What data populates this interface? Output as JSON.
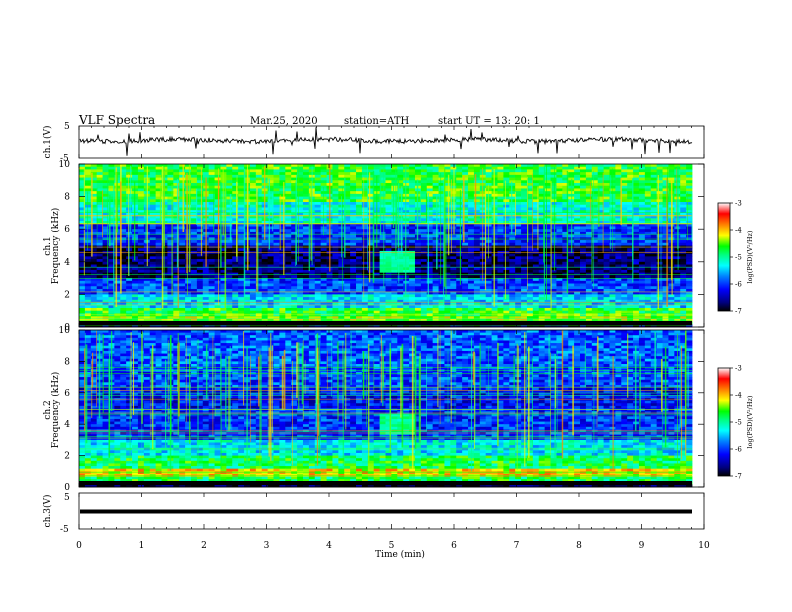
{
  "header": {
    "title": "VLF  Spectra",
    "date": "Mar.25, 2020",
    "station": "station=ATH",
    "start": "start  UT  =    13: 20: 1"
  },
  "chart_data": [
    {
      "type": "line",
      "name": "ch1-waveform",
      "ylabel": "ch.1(V)",
      "ylim": [
        -5,
        5
      ],
      "yticks": [
        "5",
        "-5"
      ],
      "xlim": [
        0,
        10
      ],
      "description_values": {
        "baseline_volts": 0.5,
        "noise_amplitude_volts": 1
      }
    },
    {
      "type": "heatmap",
      "name": "ch1-spectrogram",
      "ylabel_top": "ch.1",
      "ylabel": "Frequency (kHz)",
      "ylim": [
        0,
        10
      ],
      "yticks": [
        "0",
        "2",
        "4",
        "6",
        "8",
        "10"
      ],
      "xlim": [
        0,
        10
      ],
      "colorbar": {
        "label": "log(PSD)(V²/Hz)",
        "range": [
          -7,
          -3
        ],
        "ticks": [
          "-3",
          "-4",
          "-5",
          "-6",
          "-7"
        ]
      },
      "event": {
        "time_min": 5.1,
        "freq_khz": 4.0
      }
    },
    {
      "type": "heatmap",
      "name": "ch2-spectrogram",
      "ylabel_top": "ch.2",
      "ylabel": "Frequency (kHz)",
      "ylim": [
        0,
        10
      ],
      "yticks": [
        "0",
        "2",
        "4",
        "6",
        "8",
        "10"
      ],
      "xlim": [
        0,
        10
      ],
      "colorbar": {
        "label": "log(PSD)(V²/Hz)",
        "range": [
          -7,
          -3
        ],
        "ticks": [
          "-3",
          "-4",
          "-5",
          "-6",
          "-7"
        ]
      },
      "event": {
        "time_min": 5.1,
        "freq_khz": 4.0
      }
    },
    {
      "type": "line",
      "name": "ch3-waveform",
      "ylabel": "ch.3(V)",
      "ylim": [
        -5,
        5
      ],
      "yticks": [
        "5",
        "-5"
      ],
      "xlim": [
        0,
        10
      ],
      "xlabel": "Time  (min)",
      "xticks": [
        "0",
        "1",
        "2",
        "3",
        "4",
        "5",
        "6",
        "7",
        "8",
        "9",
        "10"
      ],
      "description_values": {
        "constant_volts": 0
      }
    }
  ],
  "colors": {
    "psd_scale": [
      "#000000",
      "#000080",
      "#0000ff",
      "#0080ff",
      "#00ffff",
      "#00ff80",
      "#00ff00",
      "#ffff00",
      "#ff8000",
      "#ff0000",
      "#ffffff"
    ]
  }
}
